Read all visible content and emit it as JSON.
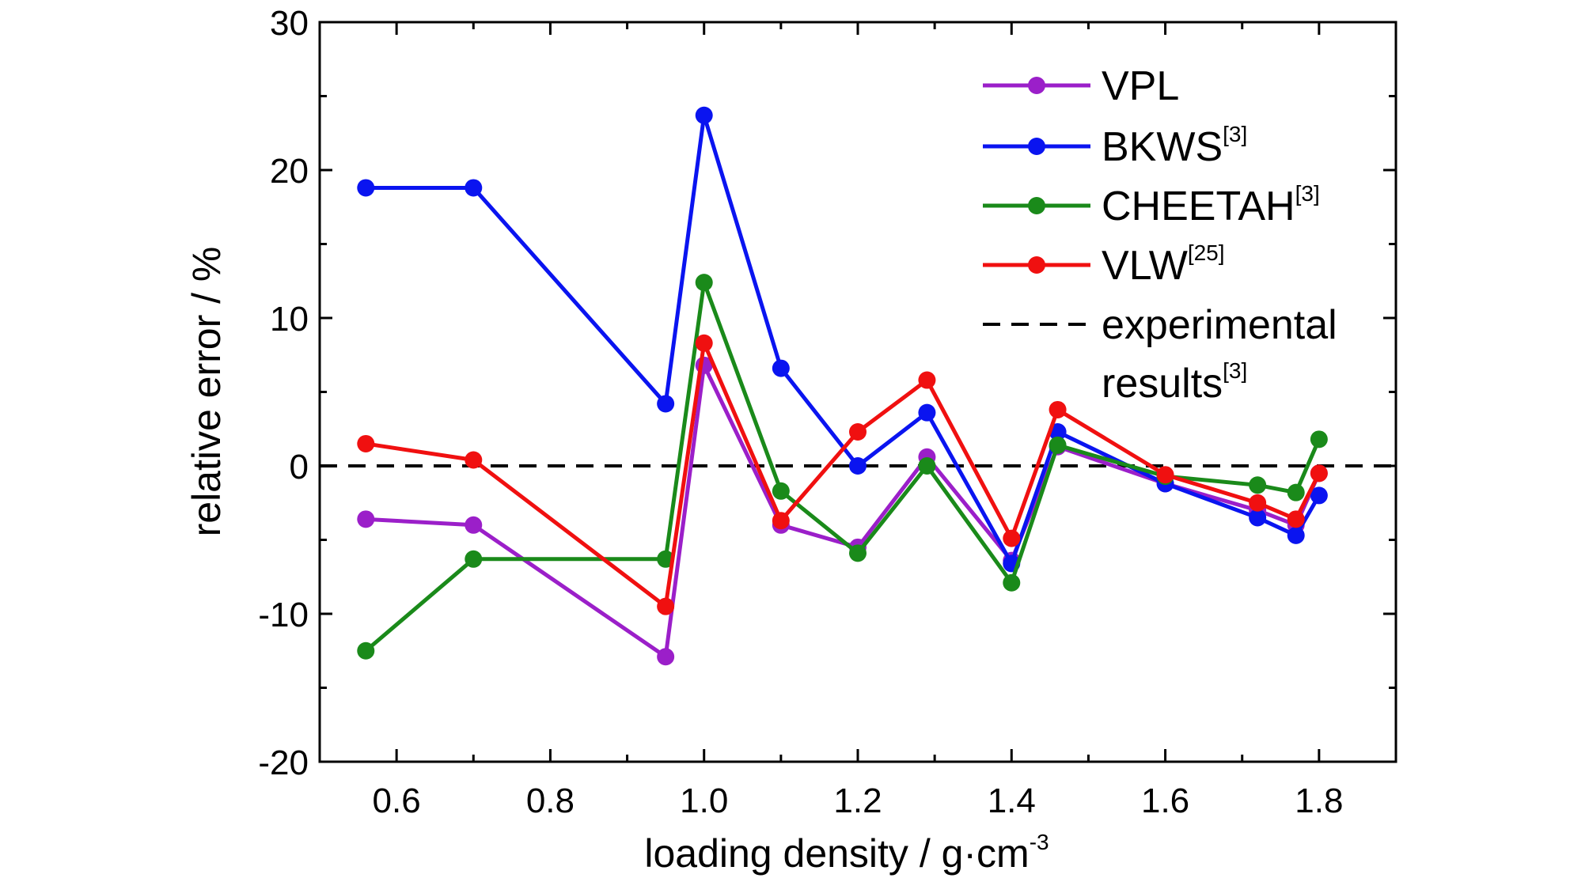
{
  "chart_data": {
    "type": "line",
    "xlabel": "loading density / g·cm",
    "xlabel_sup": "-3",
    "ylabel": "relative error / %",
    "xlim": [
      0.5,
      1.9
    ],
    "ylim": [
      -20,
      30
    ],
    "x_ticks": [
      0.6,
      0.8,
      1.0,
      1.2,
      1.4,
      1.6,
      1.8
    ],
    "x_tick_labels": [
      "0.6",
      "0.8",
      "1.0",
      "1.2",
      "1.4",
      "1.6",
      "1.8"
    ],
    "y_ticks": [
      -20,
      -10,
      0,
      10,
      20,
      30
    ],
    "y_tick_labels": [
      "-20",
      "-10",
      "0",
      "10",
      "20",
      "30"
    ],
    "legend_position": "top-right",
    "series": [
      {
        "name": "VPL",
        "sup": "",
        "color": "#9b1fc9",
        "x": [
          0.56,
          0.7,
          0.95,
          1.0,
          1.1,
          1.2,
          1.29,
          1.4,
          1.46,
          1.6,
          1.72,
          1.77,
          1.8
        ],
        "y": [
          -3.6,
          -4.0,
          -12.9,
          6.8,
          -4.0,
          -5.5,
          0.6,
          -6.4,
          1.3,
          -1.2,
          -3.0,
          -4.0,
          -0.5
        ]
      },
      {
        "name": "BKWS",
        "sup": "[3]",
        "color": "#0a14f0",
        "x": [
          0.56,
          0.7,
          0.95,
          1.0,
          1.1,
          1.2,
          1.29,
          1.4,
          1.46,
          1.6,
          1.72,
          1.77,
          1.8
        ],
        "y": [
          18.8,
          18.8,
          4.2,
          23.7,
          6.6,
          0.0,
          3.6,
          -6.6,
          2.3,
          -1.2,
          -3.5,
          -4.7,
          -2.0
        ]
      },
      {
        "name": "CHEETAH",
        "sup": "[3]",
        "color": "#1a8a1a",
        "x": [
          0.56,
          0.7,
          0.95,
          1.0,
          1.1,
          1.2,
          1.29,
          1.4,
          1.46,
          1.6,
          1.72,
          1.77,
          1.8
        ],
        "y": [
          -12.5,
          -6.3,
          -6.3,
          12.4,
          -1.7,
          -5.9,
          0.0,
          -7.9,
          1.4,
          -0.7,
          -1.3,
          -1.8,
          1.8
        ]
      },
      {
        "name": "VLW",
        "sup": "[25]",
        "color": "#f01010",
        "x": [
          0.56,
          0.7,
          0.95,
          1.0,
          1.1,
          1.2,
          1.29,
          1.4,
          1.46,
          1.6,
          1.72,
          1.77,
          1.8
        ],
        "y": [
          1.5,
          0.4,
          -9.5,
          8.3,
          -3.7,
          2.3,
          5.8,
          -4.9,
          3.8,
          -0.6,
          -2.5,
          -3.6,
          -0.5
        ]
      }
    ],
    "reference": {
      "name_line1": "experimental",
      "name_line2": "results",
      "sup": "[3]",
      "y": 0,
      "style": "dashed",
      "color": "#000000"
    }
  }
}
